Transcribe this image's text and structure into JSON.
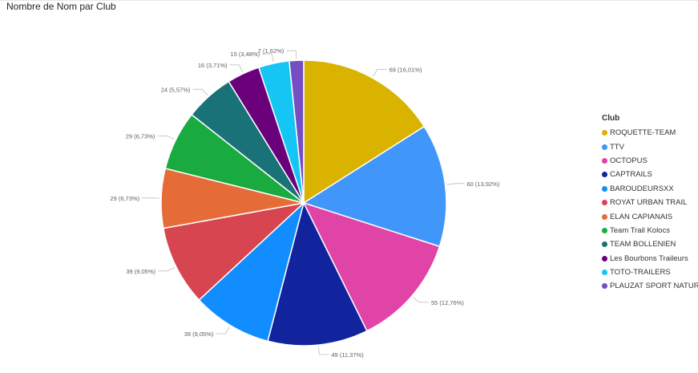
{
  "title": "Nombre de Nom par Club",
  "chart_data": {
    "type": "pie",
    "title": "Nombre de Nom par Club",
    "legend_title": "Club",
    "legend_position": "right",
    "slices": [
      {
        "label": "ROQUETTE-TEAM",
        "value": 69,
        "data_label": "69 (16,01%)",
        "color": "#D9B300"
      },
      {
        "label": "TTV",
        "value": 60,
        "data_label": "60 (13,92%)",
        "color": "#4196FA"
      },
      {
        "label": "OCTOPUS",
        "value": 55,
        "data_label": "55 (12,76%)",
        "color": "#E044A7"
      },
      {
        "label": "CAPTRAILS",
        "value": 49,
        "data_label": "49 (11,37%)",
        "color": "#12239E"
      },
      {
        "label": "BAROUDEURSXX",
        "value": 39,
        "data_label": "39 (9,05%)",
        "color": "#118DFF"
      },
      {
        "label": "ROYAT URBAN TRAIL",
        "value": 39,
        "data_label": "39 (9,05%)",
        "color": "#D64550"
      },
      {
        "label": "ELAN CAPIANAIS",
        "value": 29,
        "data_label": "29 (6,73%)",
        "color": "#E66C37"
      },
      {
        "label": "Team Trail Kolocs",
        "value": 29,
        "data_label": "29 (6,73%)",
        "color": "#1AAB40"
      },
      {
        "label": "TEAM BOLLENIEN",
        "value": 24,
        "data_label": "24 (5,57%)",
        "color": "#197278"
      },
      {
        "label": "Les Bourbons Traileurs",
        "value": 16,
        "data_label": "16 (3,71%)",
        "color": "#6B007B"
      },
      {
        "label": "TOTO-TRAILERS",
        "value": 15,
        "data_label": "15 (3,48%)",
        "color": "#15C6F4"
      },
      {
        "label": "PLAUZAT SPORT NATURE",
        "value": 7,
        "data_label": "7 (1,62%)",
        "color": "#744EC2"
      }
    ]
  }
}
